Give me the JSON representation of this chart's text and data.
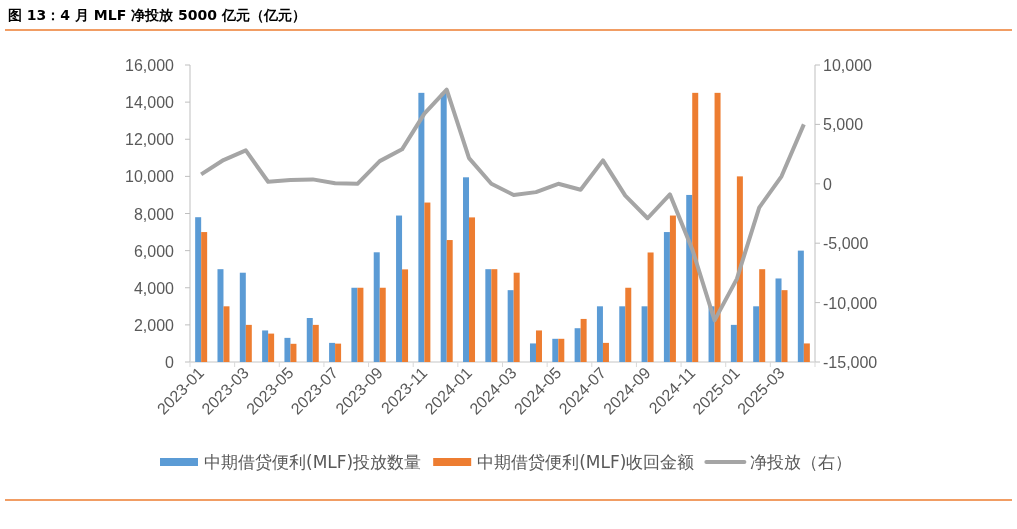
{
  "chart_data": {
    "type": "bar",
    "title": "图 13：4 月 MLF 净投放 5000 亿元（亿元）",
    "categories": [
      "2023-01",
      null,
      "2023-03",
      null,
      "2023-05",
      null,
      "2023-07",
      null,
      "2023-09",
      null,
      "2023-11",
      null,
      "2024-01",
      null,
      "2024-03",
      null,
      "2024-05",
      null,
      "2024-07",
      null,
      "2024-09",
      null,
      "2024-11",
      null,
      "2025-01",
      null,
      "2025-03",
      null
    ],
    "series": [
      {
        "name": "中期借贷便利(MLF)投放数量",
        "color": "#5b9bd5",
        "values": [
          7800,
          5000,
          4810,
          1700,
          1300,
          2370,
          1030,
          4000,
          5910,
          7890,
          14500,
          14500,
          9950,
          5000,
          3870,
          1000,
          1250,
          1820,
          3000,
          3000,
          3000,
          7000,
          9000,
          3000,
          2000,
          3000,
          4500,
          6000
        ]
      },
      {
        "name": "中期借贷便利(MLF)收回金额",
        "color": "#ed7d31",
        "values": [
          7000,
          3000,
          2000,
          1530,
          980,
          2000,
          990,
          4000,
          4000,
          4990,
          8590,
          6570,
          7790,
          5000,
          4810,
          1700,
          1250,
          2320,
          1030,
          4000,
          5900,
          7890,
          14500,
          14500,
          10000,
          5000,
          3870,
          1000
        ]
      },
      {
        "name": "净投放（右）",
        "color": "#a5a5a5",
        "type": "line",
        "axis": "y2",
        "values": [
          790,
          2000,
          2810,
          170,
          320,
          370,
          40,
          0,
          1910,
          2900,
          5910,
          7930,
          2160,
          0,
          -940,
          -700,
          0,
          -500,
          1970,
          -1000,
          -2900,
          -890,
          -5500,
          -11500,
          -8000,
          -2000,
          630,
          5000
        ]
      }
    ],
    "ylim": [
      0,
      16000
    ],
    "yticks": [
      0,
      {
        "value": 2000,
        "label": "2,000"
      },
      {
        "value": 4000,
        "label": "4,000"
      },
      {
        "value": 6000,
        "label": "6,000"
      },
      {
        "value": 8000,
        "label": "8,000"
      },
      {
        "value": 10000,
        "label": "10,000"
      },
      {
        "value": 12000,
        "label": "12,000"
      },
      {
        "value": 14000,
        "label": "14,000"
      },
      {
        "value": 16000,
        "label": "16,000"
      }
    ],
    "y2lim": [
      -15000,
      10000
    ],
    "y2ticks": [
      {
        "value": -15000,
        "label": "-15,000"
      },
      {
        "value": -10000,
        "label": "-10,000"
      },
      {
        "value": -5000,
        "label": "-5,000"
      },
      0,
      {
        "value": 5000,
        "label": "5,000"
      },
      {
        "value": 10000,
        "label": "10,000"
      }
    ],
    "legend": "bottom",
    "grid": false
  }
}
